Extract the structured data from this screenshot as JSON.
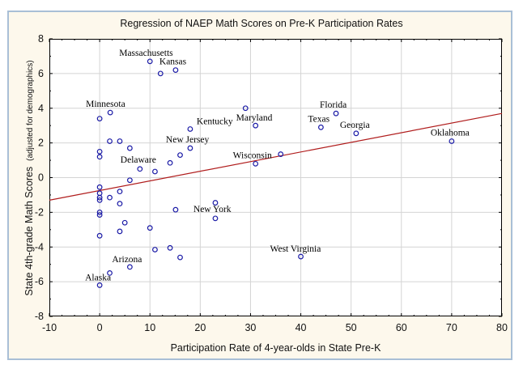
{
  "chart_data": {
    "type": "scatter",
    "title": "Regression of NAEP Math Scores on Pre-K Participation Rates",
    "xlabel": "Participation Rate of 4-year-olds in State Pre-K",
    "ylabel": "State 4th-grade Math Scores",
    "ylabel_note": "(adjusted for demographics)",
    "xlim": [
      -10,
      80
    ],
    "ylim": [
      -8,
      8
    ],
    "x_ticks": [
      -10,
      0,
      10,
      20,
      30,
      40,
      50,
      60,
      70,
      80
    ],
    "y_ticks": [
      -8,
      -6,
      -4,
      -2,
      0,
      2,
      4,
      6,
      8
    ],
    "grid": true,
    "colors": {
      "points": "#1a1aa6",
      "regression_line": "#b01c1c",
      "grid": "#d4d4d4",
      "frame_fill": "#fdf8ec",
      "frame_border": "#a9bfd6"
    },
    "regression_line": {
      "x": [
        -10,
        80
      ],
      "y": [
        -1.3,
        3.7
      ]
    },
    "points": [
      {
        "x": 10,
        "y": 6.7,
        "label": "Massachusetts"
      },
      {
        "x": 12.1,
        "y": 6.0,
        "label": ""
      },
      {
        "x": 15.1,
        "y": 6.2,
        "label": "Kansas"
      },
      {
        "x": 2.1,
        "y": 3.75,
        "label": "Minnesota"
      },
      {
        "x": 0,
        "y": 3.4,
        "label": ""
      },
      {
        "x": 18,
        "y": 2.8,
        "label": "Kentucky"
      },
      {
        "x": 29,
        "y": 4.0,
        "label": ""
      },
      {
        "x": 31,
        "y": 3.0,
        "label": "Maryland"
      },
      {
        "x": 47,
        "y": 3.7,
        "label": "Florida"
      },
      {
        "x": 44,
        "y": 2.9,
        "label": "Texas"
      },
      {
        "x": 51,
        "y": 2.55,
        "label": "Georgia"
      },
      {
        "x": 70,
        "y": 2.1,
        "label": "Oklahoma"
      },
      {
        "x": 2,
        "y": 2.1,
        "label": ""
      },
      {
        "x": 4,
        "y": 2.1,
        "label": ""
      },
      {
        "x": 6,
        "y": 1.7,
        "label": ""
      },
      {
        "x": 0,
        "y": 1.5,
        "label": ""
      },
      {
        "x": 0,
        "y": 1.2,
        "label": ""
      },
      {
        "x": 18,
        "y": 1.7,
        "label": "New Jersey"
      },
      {
        "x": 16,
        "y": 1.3,
        "label": ""
      },
      {
        "x": 14,
        "y": 0.85,
        "label": ""
      },
      {
        "x": 8,
        "y": 0.5,
        "label": "Delaware"
      },
      {
        "x": 11,
        "y": 0.35,
        "label": ""
      },
      {
        "x": 31,
        "y": 0.8,
        "label": "Wisconsin"
      },
      {
        "x": 36,
        "y": 1.35,
        "label": ""
      },
      {
        "x": 6,
        "y": -0.15,
        "label": ""
      },
      {
        "x": 0,
        "y": -0.55,
        "label": ""
      },
      {
        "x": 0,
        "y": -0.9,
        "label": ""
      },
      {
        "x": 0,
        "y": -1.15,
        "label": ""
      },
      {
        "x": 0,
        "y": -1.3,
        "label": ""
      },
      {
        "x": 4,
        "y": -0.8,
        "label": ""
      },
      {
        "x": 2,
        "y": -1.15,
        "label": ""
      },
      {
        "x": 4,
        "y": -1.5,
        "label": ""
      },
      {
        "x": 0,
        "y": -2.0,
        "label": ""
      },
      {
        "x": 0,
        "y": -2.15,
        "label": ""
      },
      {
        "x": 5,
        "y": -2.6,
        "label": ""
      },
      {
        "x": 4,
        "y": -3.1,
        "label": ""
      },
      {
        "x": 10,
        "y": -2.9,
        "label": ""
      },
      {
        "x": 0,
        "y": -3.35,
        "label": ""
      },
      {
        "x": 23,
        "y": -1.45,
        "label": ""
      },
      {
        "x": 15.1,
        "y": -1.85,
        "label": "New York"
      },
      {
        "x": 23,
        "y": -2.35,
        "label": ""
      },
      {
        "x": 14,
        "y": -4.05,
        "label": ""
      },
      {
        "x": 11,
        "y": -4.15,
        "label": ""
      },
      {
        "x": 16,
        "y": -4.6,
        "label": ""
      },
      {
        "x": 40,
        "y": -4.55,
        "label": "West Virginia"
      },
      {
        "x": 6,
        "y": -5.15,
        "label": "Arizona"
      },
      {
        "x": 2,
        "y": -5.5,
        "label": ""
      },
      {
        "x": 0,
        "y": -6.2,
        "label": "Alaska"
      }
    ]
  }
}
